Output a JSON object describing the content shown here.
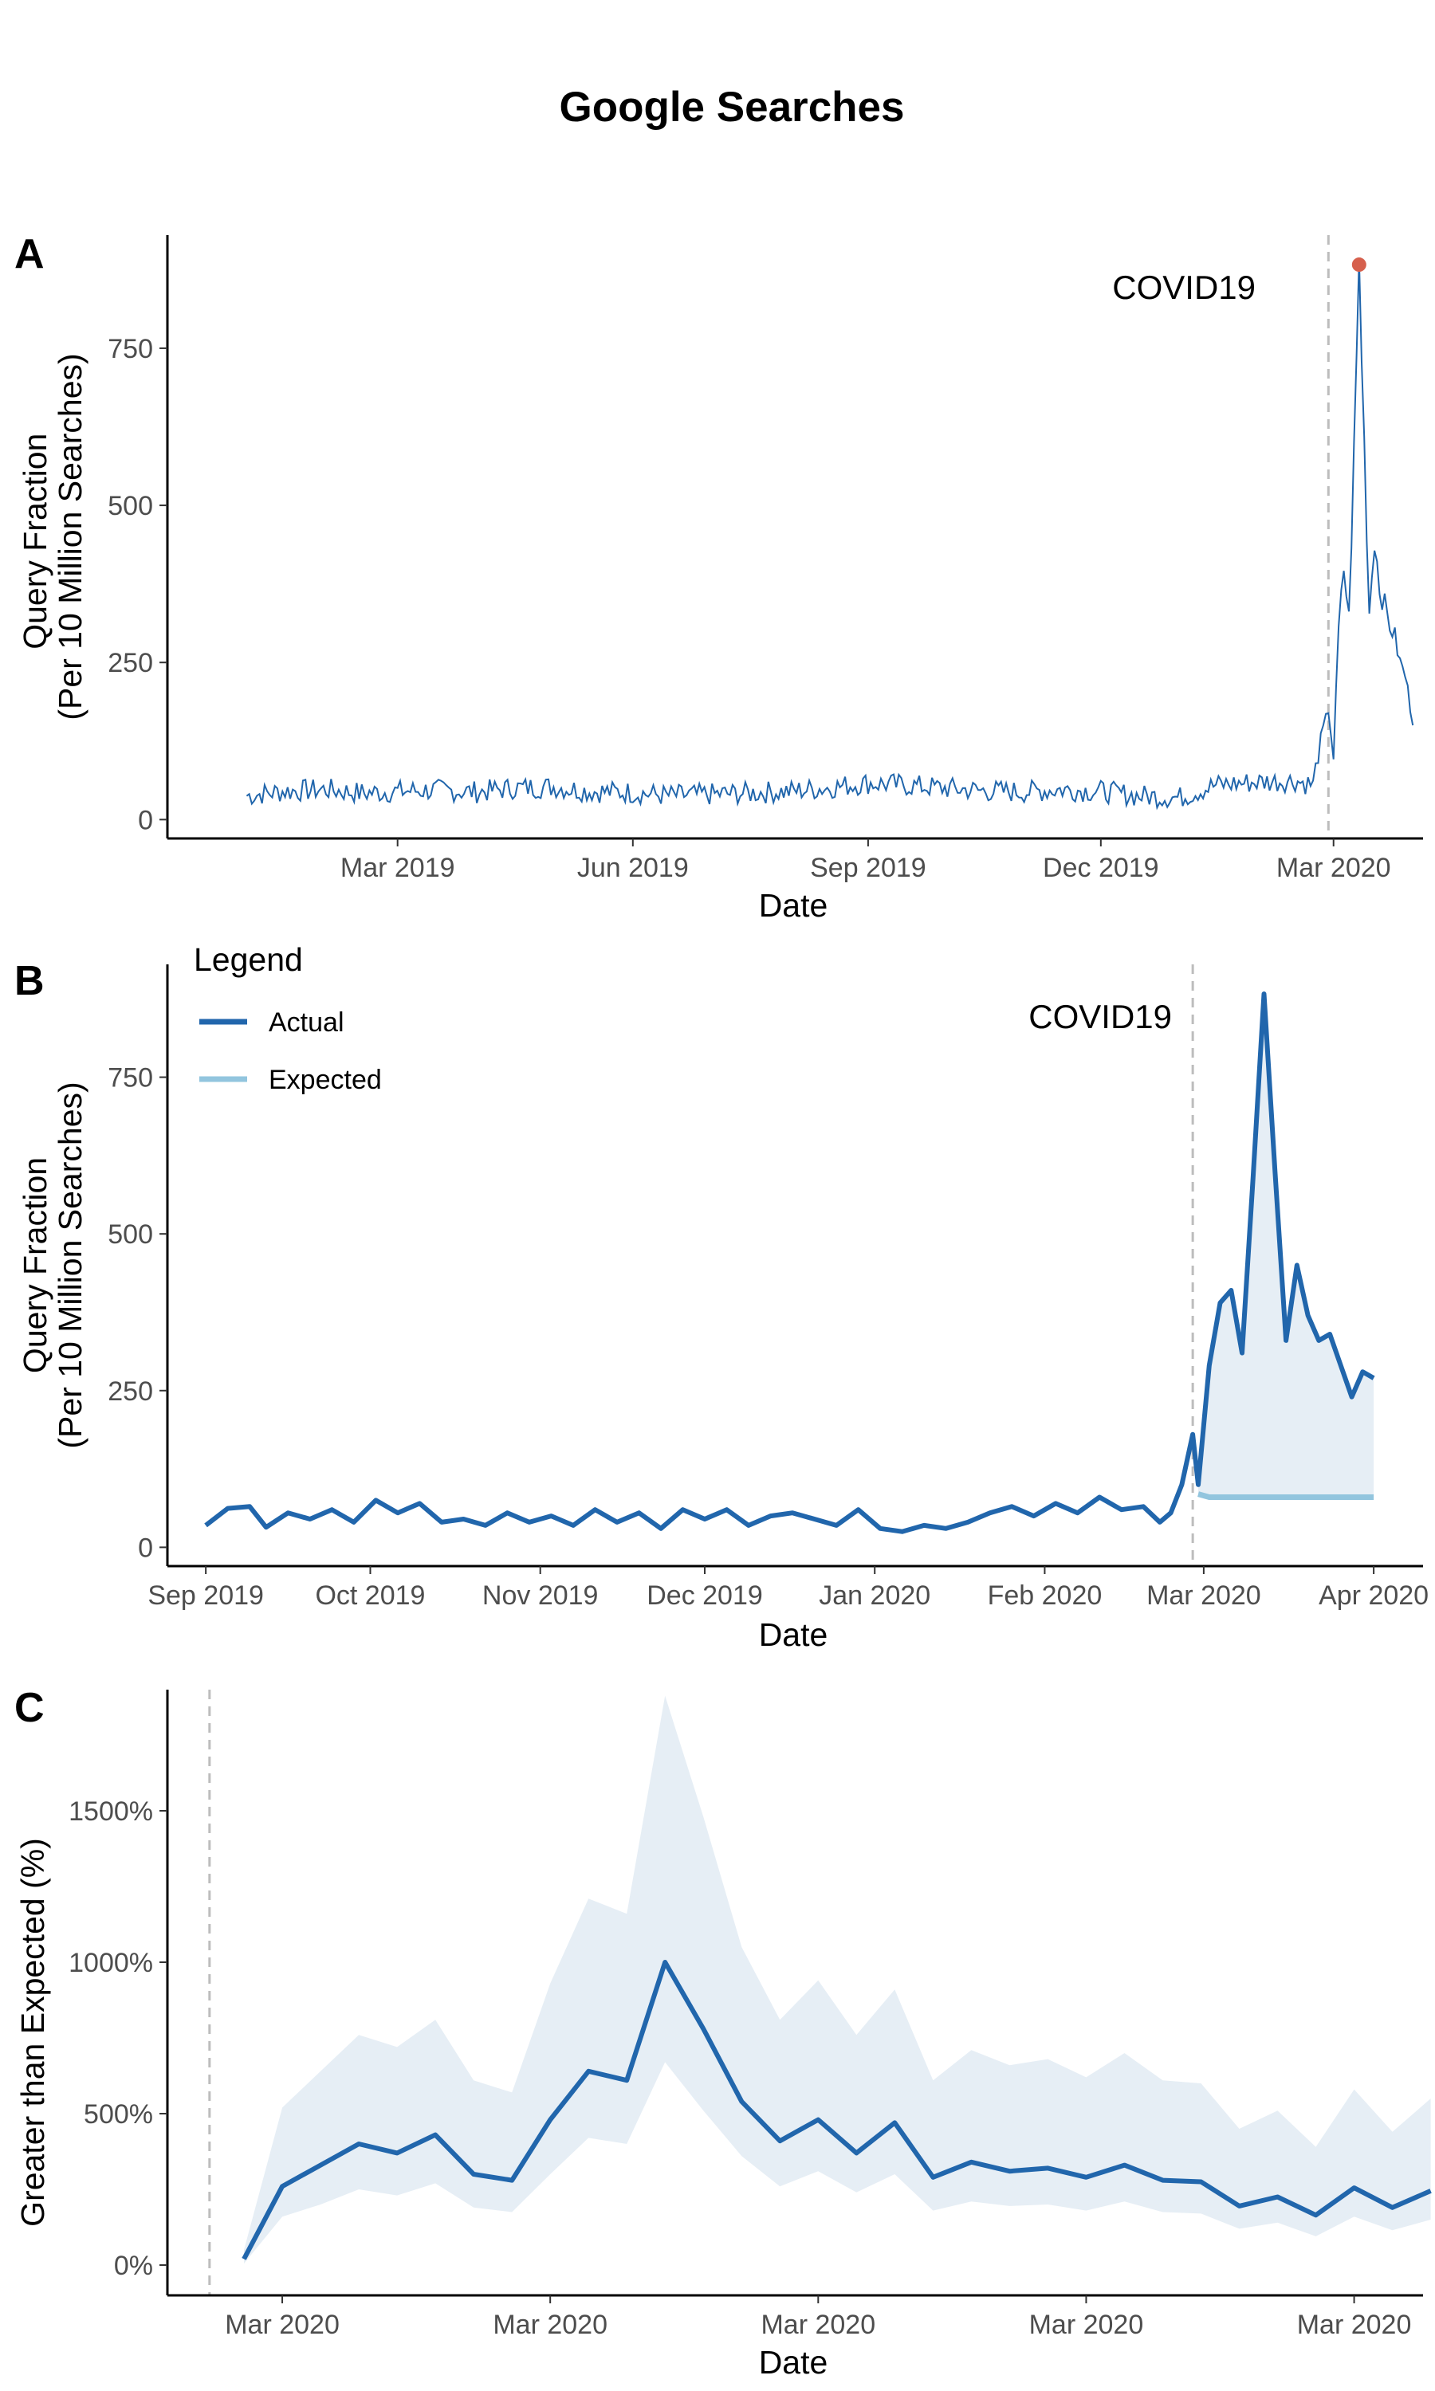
{
  "title": "Google Searches",
  "colors": {
    "actual": "#2166ac",
    "expected": "#92c5de",
    "band": "#e6eef5",
    "peak": "#d6604d",
    "vline": "#bdbdbd"
  },
  "chart_data": [
    {
      "panel": "A",
      "type": "line",
      "xlabel": "Date",
      "ylabel": [
        "Query Fraction",
        "(Per 10 Million Searches)"
      ],
      "xlim": [
        "2018-12-01",
        "2020-04-05"
      ],
      "ylim": [
        -30,
        930
      ],
      "yticks": [
        0,
        250,
        500,
        750
      ],
      "xticks": [
        {
          "date": "2019-03-01",
          "label": "Mar 2019"
        },
        {
          "date": "2019-06-01",
          "label": "Jun 2019"
        },
        {
          "date": "2019-09-01",
          "label": "Sep 2019"
        },
        {
          "date": "2019-12-01",
          "label": "Dec 2019"
        },
        {
          "date": "2020-03-01",
          "label": "Mar 2020"
        }
      ],
      "vline": {
        "date": "2020-02-28",
        "label": "COVID19"
      },
      "peak": {
        "date": "2020-03-11",
        "value": 883
      },
      "series": [
        {
          "values": [
            [
              "2019-01-01",
              38
            ],
            [
              "2019-01-15",
              45
            ],
            [
              "2019-02-01",
              48
            ],
            [
              "2019-02-15",
              42
            ],
            [
              "2019-03-01",
              45
            ],
            [
              "2019-03-15",
              47
            ],
            [
              "2019-04-01",
              44
            ],
            [
              "2019-04-15",
              50
            ],
            [
              "2019-05-01",
              52
            ],
            [
              "2019-05-15",
              45
            ],
            [
              "2019-06-01",
              43
            ],
            [
              "2019-06-15",
              38
            ],
            [
              "2019-07-01",
              40
            ],
            [
              "2019-07-15",
              42
            ],
            [
              "2019-08-01",
              45
            ],
            [
              "2019-08-15",
              50
            ],
            [
              "2019-09-01",
              58
            ],
            [
              "2019-09-15",
              55
            ],
            [
              "2019-10-01",
              50
            ],
            [
              "2019-10-15",
              46
            ],
            [
              "2019-11-01",
              44
            ],
            [
              "2019-11-15",
              48
            ],
            [
              "2019-12-01",
              45
            ],
            [
              "2019-12-15",
              38
            ],
            [
              "2020-01-01",
              35
            ],
            [
              "2020-01-15",
              55
            ],
            [
              "2020-02-01",
              60
            ],
            [
              "2020-02-15",
              62
            ],
            [
              "2020-02-22",
              55
            ],
            [
              "2020-02-25",
              130
            ],
            [
              "2020-02-28",
              175
            ],
            [
              "2020-03-01",
              100
            ],
            [
              "2020-03-03",
              300
            ],
            [
              "2020-03-05",
              400
            ],
            [
              "2020-03-07",
              320
            ],
            [
              "2020-03-09",
              580
            ],
            [
              "2020-03-11",
              883
            ],
            [
              "2020-03-13",
              600
            ],
            [
              "2020-03-15",
              330
            ],
            [
              "2020-03-17",
              450
            ],
            [
              "2020-03-19",
              370
            ],
            [
              "2020-03-21",
              340
            ],
            [
              "2020-03-23",
              310
            ],
            [
              "2020-03-25",
              290
            ],
            [
              "2020-03-27",
              250
            ],
            [
              "2020-03-29",
              230
            ],
            [
              "2020-03-31",
              180
            ],
            [
              "2020-04-01",
              150
            ]
          ]
        }
      ]
    },
    {
      "panel": "B",
      "type": "line",
      "xlabel": "Date",
      "ylabel": [
        "Query Fraction",
        "(Per 10 Million Searches)"
      ],
      "xlim": [
        "2019-08-25",
        "2020-04-10"
      ],
      "ylim": [
        -30,
        930
      ],
      "yticks": [
        0,
        250,
        500,
        750
      ],
      "xticks": [
        {
          "date": "2019-09-01",
          "label": "Sep 2019"
        },
        {
          "date": "2019-10-01",
          "label": "Oct 2019"
        },
        {
          "date": "2019-11-01",
          "label": "Nov 2019"
        },
        {
          "date": "2019-12-01",
          "label": "Dec 2019"
        },
        {
          "date": "2020-01-01",
          "label": "Jan 2020"
        },
        {
          "date": "2020-02-01",
          "label": "Feb 2020"
        },
        {
          "date": "2020-03-01",
          "label": "Mar 2020"
        },
        {
          "date": "2020-04-01",
          "label": "Apr 2020"
        }
      ],
      "vline": {
        "date": "2020-02-28",
        "label": "COVID19"
      },
      "legend": {
        "title": "Legend",
        "position": "top-left"
      },
      "series": [
        {
          "name": "Actual",
          "values": [
            [
              "2019-09-01",
              35
            ],
            [
              "2019-09-05",
              62
            ],
            [
              "2019-09-09",
              65
            ],
            [
              "2019-09-12",
              32
            ],
            [
              "2019-09-16",
              55
            ],
            [
              "2019-09-20",
              45
            ],
            [
              "2019-09-24",
              60
            ],
            [
              "2019-09-28",
              40
            ],
            [
              "2019-10-02",
              75
            ],
            [
              "2019-10-06",
              55
            ],
            [
              "2019-10-10",
              70
            ],
            [
              "2019-10-14",
              40
            ],
            [
              "2019-10-18",
              45
            ],
            [
              "2019-10-22",
              35
            ],
            [
              "2019-10-26",
              55
            ],
            [
              "2019-10-30",
              40
            ],
            [
              "2019-11-03",
              50
            ],
            [
              "2019-11-07",
              35
            ],
            [
              "2019-11-11",
              60
            ],
            [
              "2019-11-15",
              40
            ],
            [
              "2019-11-19",
              55
            ],
            [
              "2019-11-23",
              30
            ],
            [
              "2019-11-27",
              60
            ],
            [
              "2019-12-01",
              45
            ],
            [
              "2019-12-05",
              60
            ],
            [
              "2019-12-09",
              35
            ],
            [
              "2019-12-13",
              50
            ],
            [
              "2019-12-17",
              55
            ],
            [
              "2019-12-21",
              45
            ],
            [
              "2019-12-25",
              35
            ],
            [
              "2019-12-29",
              60
            ],
            [
              "2020-01-02",
              30
            ],
            [
              "2020-01-06",
              25
            ],
            [
              "2020-01-10",
              35
            ],
            [
              "2020-01-14",
              30
            ],
            [
              "2020-01-18",
              40
            ],
            [
              "2020-01-22",
              55
            ],
            [
              "2020-01-26",
              65
            ],
            [
              "2020-01-30",
              50
            ],
            [
              "2020-02-03",
              70
            ],
            [
              "2020-02-07",
              55
            ],
            [
              "2020-02-11",
              80
            ],
            [
              "2020-02-15",
              60
            ],
            [
              "2020-02-19",
              65
            ],
            [
              "2020-02-22",
              40
            ],
            [
              "2020-02-24",
              55
            ],
            [
              "2020-02-26",
              100
            ],
            [
              "2020-02-28",
              180
            ],
            [
              "2020-02-29",
              100
            ],
            [
              "2020-03-02",
              290
            ],
            [
              "2020-03-04",
              390
            ],
            [
              "2020-03-06",
              410
            ],
            [
              "2020-03-08",
              310
            ],
            [
              "2020-03-10",
              590
            ],
            [
              "2020-03-12",
              883
            ],
            [
              "2020-03-14",
              600
            ],
            [
              "2020-03-16",
              330
            ],
            [
              "2020-03-18",
              450
            ],
            [
              "2020-03-20",
              370
            ],
            [
              "2020-03-22",
              330
            ],
            [
              "2020-03-24",
              340
            ],
            [
              "2020-03-26",
              290
            ],
            [
              "2020-03-28",
              240
            ],
            [
              "2020-03-30",
              280
            ],
            [
              "2020-04-01",
              270
            ]
          ]
        },
        {
          "name": "Expected",
          "values": [
            [
              "2020-02-29",
              85
            ],
            [
              "2020-03-02",
              80
            ],
            [
              "2020-04-01",
              80
            ]
          ]
        }
      ]
    },
    {
      "panel": "C",
      "type": "line",
      "xlabel": "Date",
      "ylabel": "Greater than Expected (%)",
      "xlim": [
        -2.0,
        30.8
      ],
      "ylim": [
        -100,
        1900
      ],
      "yticks": [
        {
          "v": 0,
          "label": "0%"
        },
        {
          "v": 500,
          "label": "500%"
        },
        {
          "v": 1000,
          "label": "1000%"
        },
        {
          "v": 1500,
          "label": "1500%"
        }
      ],
      "xticks": [
        {
          "x": 1,
          "label": "Mar 2020"
        },
        {
          "x": 8,
          "label": "Mar 2020"
        },
        {
          "x": 15,
          "label": "Mar 2020"
        },
        {
          "x": 22,
          "label": "Mar 2020"
        },
        {
          "x": 29,
          "label": "Mar 2020"
        }
      ],
      "vline": {
        "x": -0.9
      },
      "series": [
        {
          "name": "Estimate",
          "values": [
            [
              0,
              20
            ],
            [
              1,
              260
            ],
            [
              2,
              330
            ],
            [
              3,
              400
            ],
            [
              4,
              370
            ],
            [
              5,
              430
            ],
            [
              6,
              300
            ],
            [
              7,
              280
            ],
            [
              8,
              480
            ],
            [
              9,
              640
            ],
            [
              10,
              610
            ],
            [
              11,
              1000
            ],
            [
              12,
              780
            ],
            [
              13,
              540
            ],
            [
              14,
              410
            ],
            [
              15,
              480
            ],
            [
              16,
              370
            ],
            [
              17,
              470
            ],
            [
              18,
              290
            ],
            [
              19,
              340
            ],
            [
              20,
              310
            ],
            [
              21,
              320
            ],
            [
              22,
              290
            ],
            [
              23,
              330
            ],
            [
              24,
              280
            ],
            [
              25,
              275
            ],
            [
              26,
              195
            ],
            [
              27,
              225
            ],
            [
              28,
              165
            ],
            [
              29,
              255
            ],
            [
              30,
              190
            ],
            [
              31,
              245
            ]
          ]
        },
        {
          "name": "Upper",
          "values": [
            [
              0,
              50
            ],
            [
              1,
              520
            ],
            [
              2,
              640
            ],
            [
              3,
              760
            ],
            [
              4,
              720
            ],
            [
              5,
              810
            ],
            [
              6,
              610
            ],
            [
              7,
              570
            ],
            [
              8,
              930
            ],
            [
              9,
              1210
            ],
            [
              10,
              1160
            ],
            [
              11,
              1880
            ],
            [
              12,
              1480
            ],
            [
              13,
              1050
            ],
            [
              14,
              810
            ],
            [
              15,
              940
            ],
            [
              16,
              760
            ],
            [
              17,
              910
            ],
            [
              18,
              610
            ],
            [
              19,
              710
            ],
            [
              20,
              660
            ],
            [
              21,
              680
            ],
            [
              22,
              620
            ],
            [
              23,
              700
            ],
            [
              24,
              610
            ],
            [
              25,
              600
            ],
            [
              26,
              450
            ],
            [
              27,
              510
            ],
            [
              28,
              390
            ],
            [
              29,
              580
            ],
            [
              30,
              440
            ],
            [
              31,
              550
            ]
          ]
        },
        {
          "name": "Lower",
          "values": [
            [
              0,
              5
            ],
            [
              1,
              160
            ],
            [
              2,
              200
            ],
            [
              3,
              250
            ],
            [
              4,
              230
            ],
            [
              5,
              270
            ],
            [
              6,
              190
            ],
            [
              7,
              175
            ],
            [
              8,
              300
            ],
            [
              9,
              420
            ],
            [
              10,
              400
            ],
            [
              11,
              670
            ],
            [
              12,
              510
            ],
            [
              13,
              360
            ],
            [
              14,
              260
            ],
            [
              15,
              310
            ],
            [
              16,
              240
            ],
            [
              17,
              300
            ],
            [
              18,
              180
            ],
            [
              19,
              210
            ],
            [
              20,
              195
            ],
            [
              21,
              200
            ],
            [
              22,
              180
            ],
            [
              23,
              210
            ],
            [
              24,
              175
            ],
            [
              25,
              170
            ],
            [
              26,
              120
            ],
            [
              27,
              140
            ],
            [
              28,
              95
            ],
            [
              29,
              160
            ],
            [
              30,
              115
            ],
            [
              31,
              150
            ]
          ]
        }
      ]
    }
  ]
}
